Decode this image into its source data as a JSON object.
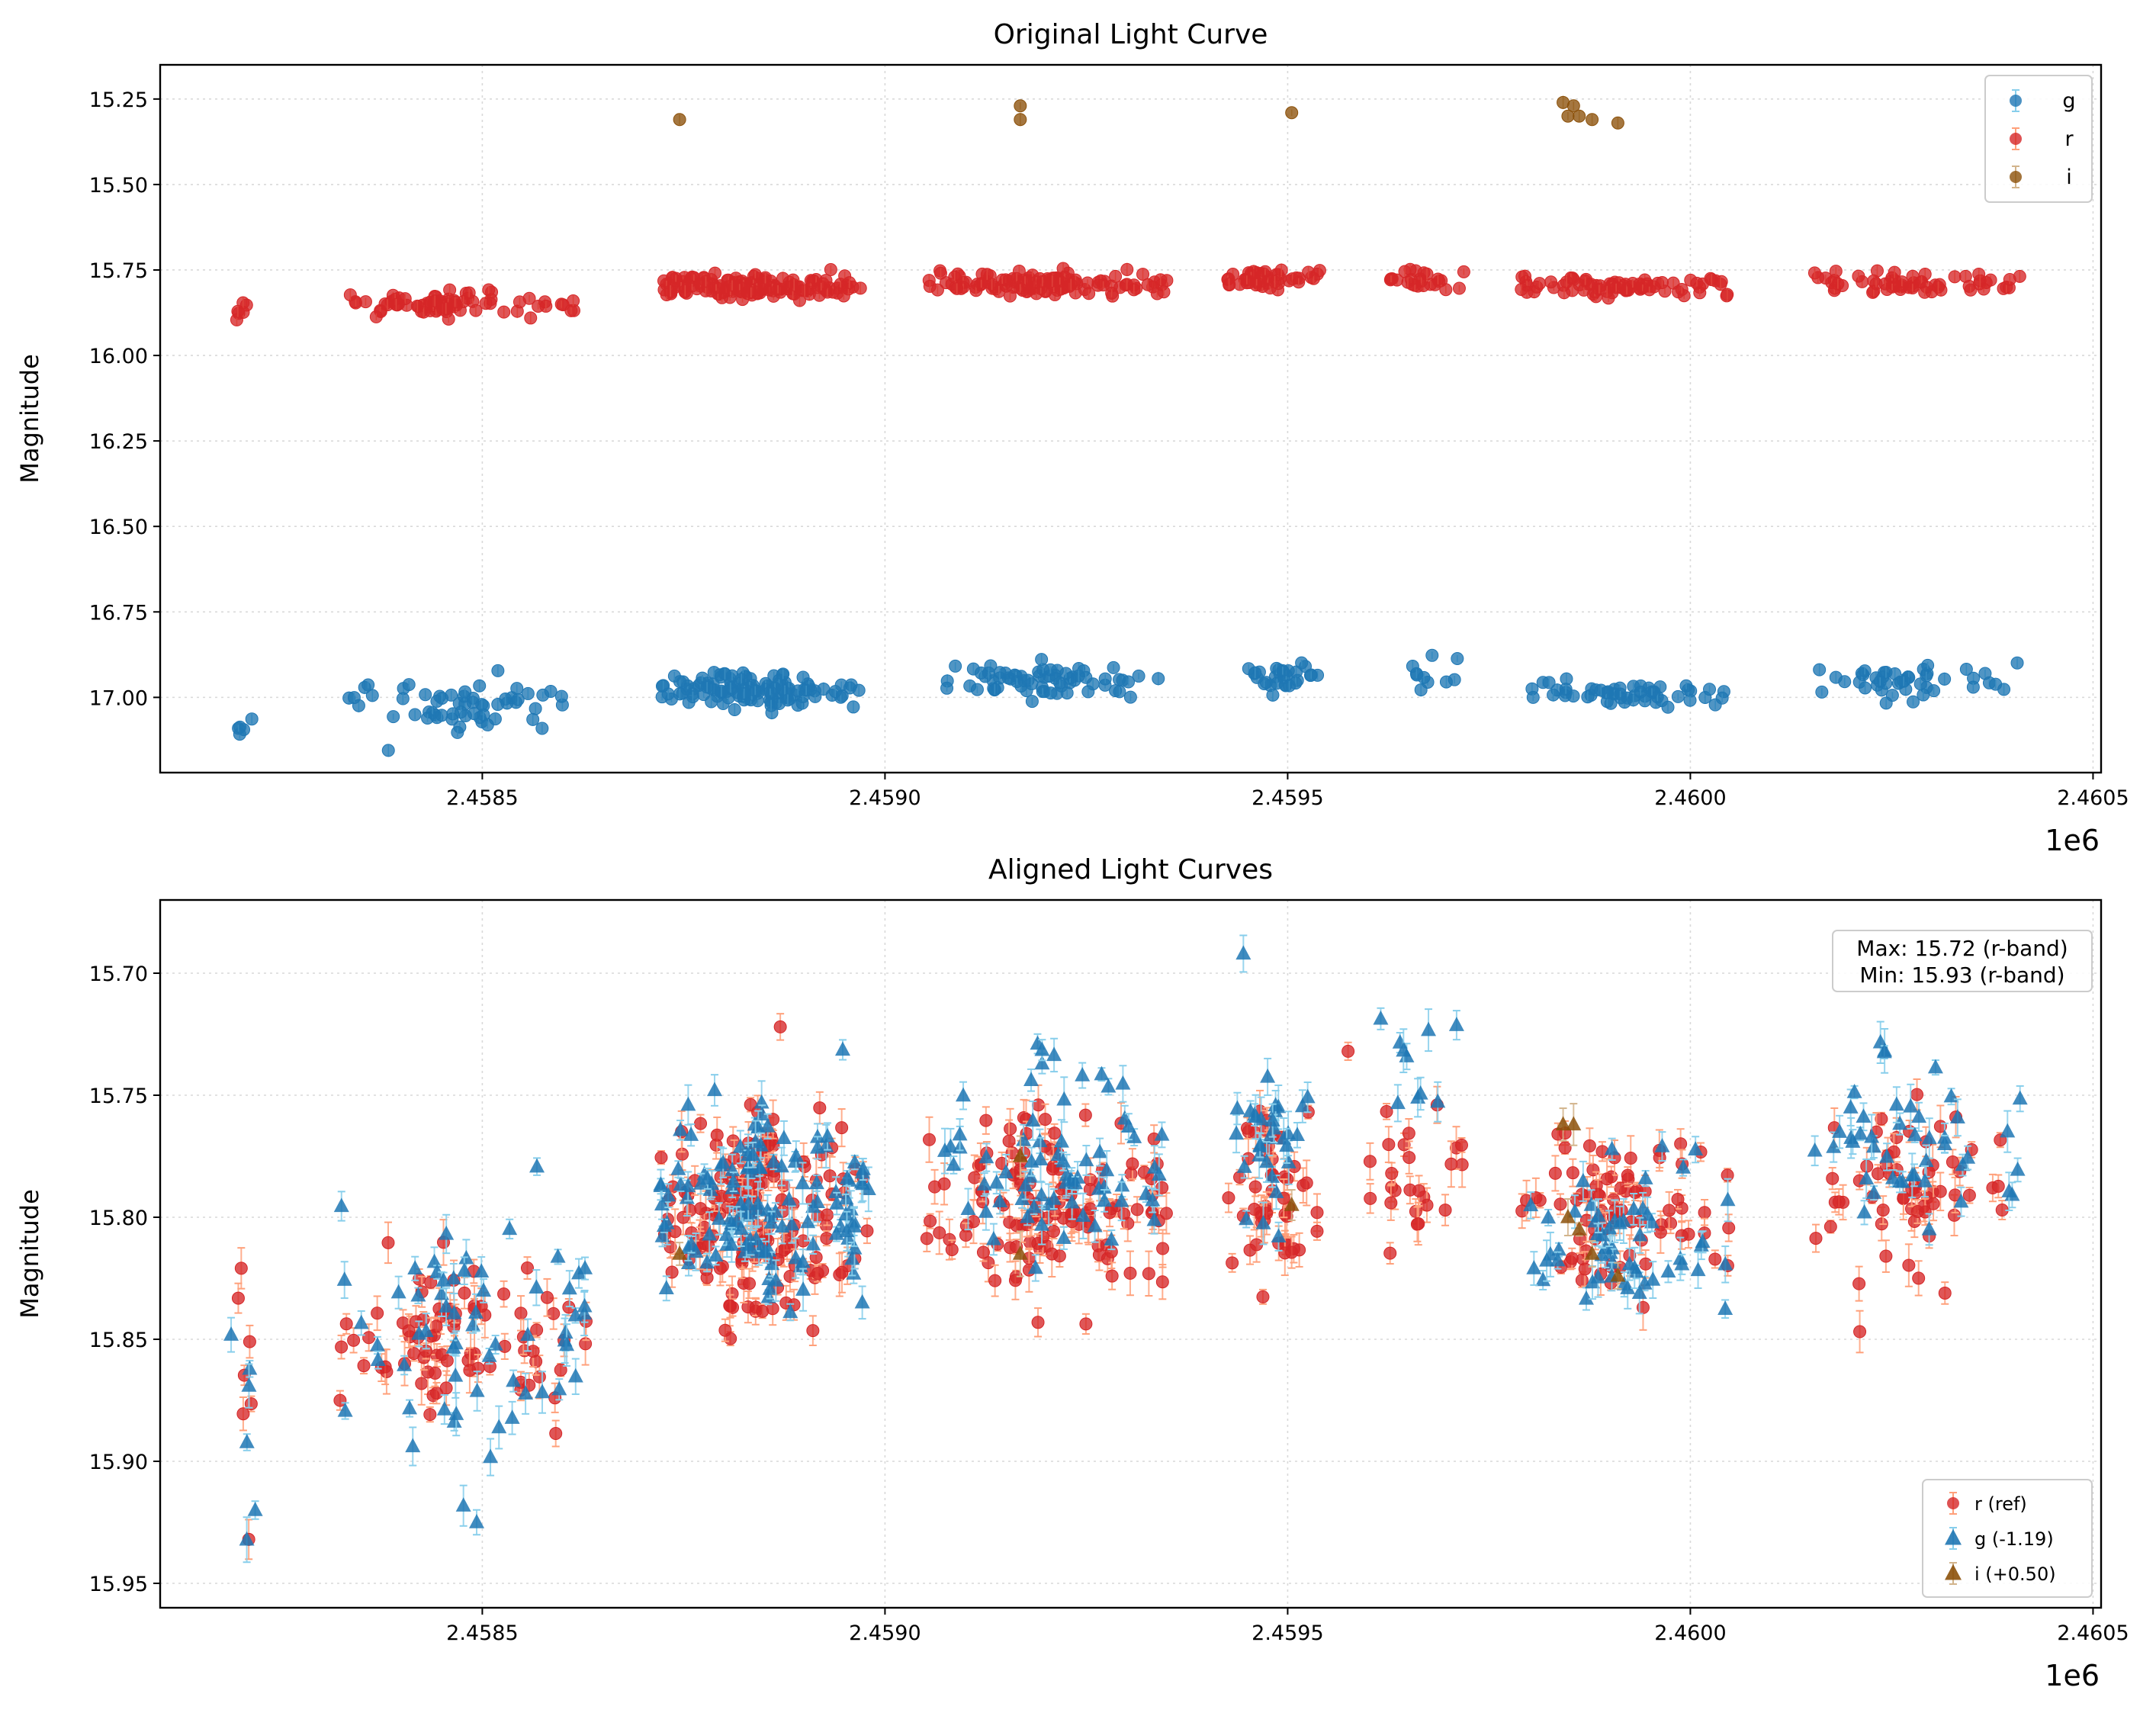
{
  "colors": {
    "g": "#1f77b4",
    "g_err": "#87ceeb",
    "r": "#d62728",
    "r_err": "#ffa07a",
    "i": "#8c510a",
    "i_err": "#d2b48c"
  },
  "chart_data": [
    {
      "type": "scatter",
      "title": "Original Light Curve",
      "xlabel": "",
      "ylabel": "Magnitude",
      "x_offset_label": "1e6",
      "xlim": [
        2458100,
        2460510
      ],
      "ylim": [
        17.22,
        15.15
      ],
      "y_inverted": true,
      "xticks": [
        2458500,
        2459000,
        2459500,
        2460000,
        2460500
      ],
      "xtick_labels": [
        "2.4585",
        "2.4590",
        "2.4595",
        "2.4600",
        "2.4605"
      ],
      "yticks": [
        15.25,
        15.5,
        15.75,
        16.0,
        16.25,
        16.5,
        16.75,
        17.0
      ],
      "ytick_labels": [
        "15.25",
        "15.50",
        "15.75",
        "16.00",
        "16.25",
        "16.50",
        "16.75",
        "17.00"
      ],
      "grid": true,
      "legend_position": "top-right",
      "series": [
        {
          "name": "g",
          "marker": "circle",
          "color_key": "g",
          "seasons": [
            {
              "x": [
                2458190,
                2458215
              ],
              "n": 5,
              "y_center": 17.08,
              "y_spread": 0.03
            },
            {
              "x": [
                2458330,
                2458620
              ],
              "n": 60,
              "y_center": 17.03,
              "y_spread": 0.06
            },
            {
              "x": [
                2458720,
                2458970
              ],
              "n": 130,
              "y_center": 16.98,
              "y_spread": 0.04
            },
            {
              "x": [
                2459075,
                2459340
              ],
              "n": 70,
              "y_center": 16.95,
              "y_spread": 0.04
            },
            {
              "x": [
                2459450,
                2459540
              ],
              "n": 30,
              "y_center": 16.94,
              "y_spread": 0.03
            },
            {
              "x": [
                2459610,
                2459720
              ],
              "n": 10,
              "y_center": 16.93,
              "y_spread": 0.03
            },
            {
              "x": [
                2459800,
                2460050
              ],
              "n": 55,
              "y_center": 16.99,
              "y_spread": 0.03
            },
            {
              "x": [
                2460150,
                2460410
              ],
              "n": 45,
              "y_center": 16.95,
              "y_spread": 0.03
            }
          ]
        },
        {
          "name": "r",
          "marker": "circle",
          "color_key": "r",
          "seasons": [
            {
              "x": [
                2458190,
                2458215
              ],
              "n": 6,
              "y_center": 15.87,
              "y_spread": 0.03
            },
            {
              "x": [
                2458330,
                2458620
              ],
              "n": 80,
              "y_center": 15.85,
              "y_spread": 0.02
            },
            {
              "x": [
                2458720,
                2458970
              ],
              "n": 170,
              "y_center": 15.8,
              "y_spread": 0.025
            },
            {
              "x": [
                2459050,
                2459350
              ],
              "n": 130,
              "y_center": 15.79,
              "y_spread": 0.025
            },
            {
              "x": [
                2459420,
                2459540
              ],
              "n": 50,
              "y_center": 15.78,
              "y_spread": 0.02
            },
            {
              "x": [
                2459600,
                2459720
              ],
              "n": 25,
              "y_center": 15.78,
              "y_spread": 0.02
            },
            {
              "x": [
                2459790,
                2460050
              ],
              "n": 80,
              "y_center": 15.8,
              "y_spread": 0.02
            },
            {
              "x": [
                2460150,
                2460410
              ],
              "n": 60,
              "y_center": 15.79,
              "y_spread": 0.02
            }
          ]
        },
        {
          "name": "i",
          "marker": "circle",
          "color_key": "i",
          "points": [
            {
              "x": 2458745,
              "y": 15.31
            },
            {
              "x": 2459168,
              "y": 15.27
            },
            {
              "x": 2459168,
              "y": 15.31
            },
            {
              "x": 2459505,
              "y": 15.29
            },
            {
              "x": 2459842,
              "y": 15.26
            },
            {
              "x": 2459848,
              "y": 15.3
            },
            {
              "x": 2459855,
              "y": 15.27
            },
            {
              "x": 2459862,
              "y": 15.3
            },
            {
              "x": 2459878,
              "y": 15.31
            },
            {
              "x": 2459910,
              "y": 15.32
            }
          ]
        }
      ]
    },
    {
      "type": "scatter",
      "title": "Aligned Light Curves",
      "xlabel": "",
      "ylabel": "Magnitude",
      "x_offset_label": "1e6",
      "xlim": [
        2458100,
        2460510
      ],
      "ylim": [
        15.96,
        15.67
      ],
      "y_inverted": true,
      "xticks": [
        2458500,
        2459000,
        2459500,
        2460000,
        2460500
      ],
      "xtick_labels": [
        "2.4585",
        "2.4590",
        "2.4595",
        "2.4600",
        "2.4605"
      ],
      "yticks": [
        15.7,
        15.75,
        15.8,
        15.85,
        15.9,
        15.95
      ],
      "ytick_labels": [
        "15.70",
        "15.75",
        "15.80",
        "15.85",
        "15.90",
        "15.95"
      ],
      "grid": true,
      "legend_position": "lower-right",
      "annotation_lines": [
        "Max: 15.72 (r-band)",
        "Min: 15.93 (r-band)"
      ],
      "series": [
        {
          "name": "r (ref)",
          "marker": "circle",
          "color_key": "r",
          "seasons": [
            {
              "x": [
                2458195,
                2458215
              ],
              "n": 6,
              "y_center": 15.87,
              "y_spread": 0.04
            },
            {
              "x": [
                2458320,
                2458630
              ],
              "n": 80,
              "y_center": 15.85,
              "y_spread": 0.025
            },
            {
              "x": [
                2458720,
                2458980
              ],
              "n": 170,
              "y_center": 15.8,
              "y_spread": 0.03
            },
            {
              "x": [
                2459050,
                2459350
              ],
              "n": 130,
              "y_center": 15.795,
              "y_spread": 0.025
            },
            {
              "x": [
                2459420,
                2459540
              ],
              "n": 50,
              "y_center": 15.79,
              "y_spread": 0.025
            },
            {
              "x": [
                2459600,
                2459720
              ],
              "n": 25,
              "y_center": 15.78,
              "y_spread": 0.03
            },
            {
              "x": [
                2459790,
                2460050
              ],
              "n": 80,
              "y_center": 15.8,
              "y_spread": 0.025
            },
            {
              "x": [
                2460150,
                2460410
              ],
              "n": 60,
              "y_center": 15.79,
              "y_spread": 0.025
            }
          ],
          "points": [
            {
              "x": 2458210,
              "y": 15.932
            },
            {
              "x": 2458870,
              "y": 15.722
            },
            {
              "x": 2459575,
              "y": 15.732
            }
          ]
        },
        {
          "name": "g (-1.19)",
          "marker": "triangle",
          "color_key": "g",
          "seasons": [
            {
              "x": [
                2458185,
                2458225
              ],
              "n": 5,
              "y_center": 15.885,
              "y_spread": 0.025
            },
            {
              "x": [
                2458320,
                2458630
              ],
              "n": 60,
              "y_center": 15.84,
              "y_spread": 0.04
            },
            {
              "x": [
                2458720,
                2458980
              ],
              "n": 130,
              "y_center": 15.795,
              "y_spread": 0.03
            },
            {
              "x": [
                2459070,
                2459350
              ],
              "n": 70,
              "y_center": 15.78,
              "y_spread": 0.03
            },
            {
              "x": [
                2459430,
                2459540
              ],
              "n": 30,
              "y_center": 15.765,
              "y_spread": 0.025
            },
            {
              "x": [
                2459600,
                2459720
              ],
              "n": 10,
              "y_center": 15.74,
              "y_spread": 0.025
            },
            {
              "x": [
                2459800,
                2460050
              ],
              "n": 55,
              "y_center": 15.81,
              "y_spread": 0.025
            },
            {
              "x": [
                2460150,
                2460410
              ],
              "n": 45,
              "y_center": 15.77,
              "y_spread": 0.025
            }
          ],
          "points": [
            {
              "x": 2459445,
              "y": 15.692
            },
            {
              "x": 2458493,
              "y": 15.925
            },
            {
              "x": 2458218,
              "y": 15.92
            }
          ]
        },
        {
          "name": "i (+0.50)",
          "marker": "triangle",
          "color_key": "i",
          "points": [
            {
              "x": 2458745,
              "y": 15.815
            },
            {
              "x": 2459168,
              "y": 15.775
            },
            {
              "x": 2459168,
              "y": 15.815
            },
            {
              "x": 2459505,
              "y": 15.795
            },
            {
              "x": 2459842,
              "y": 15.762
            },
            {
              "x": 2459848,
              "y": 15.8
            },
            {
              "x": 2459855,
              "y": 15.762
            },
            {
              "x": 2459862,
              "y": 15.805
            },
            {
              "x": 2459878,
              "y": 15.815
            },
            {
              "x": 2459910,
              "y": 15.824
            }
          ]
        }
      ]
    }
  ]
}
